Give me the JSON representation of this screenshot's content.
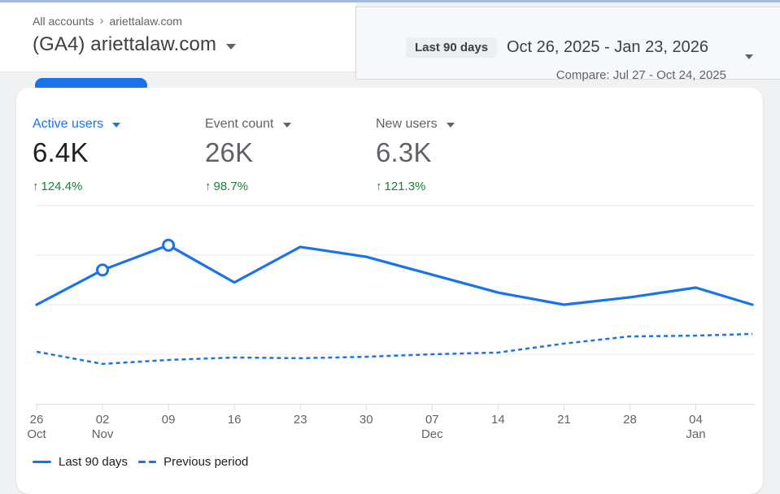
{
  "colors": {
    "accent": "#1a73e8",
    "positive": "#188038",
    "grid": "#e9eaee",
    "axis": "#dadce0",
    "axis_text": "#5f6368"
  },
  "header": {
    "breadcrumb": {
      "root": "All accounts",
      "separator": "›",
      "account": "ariettalaw.com"
    },
    "property_title": "(GA4) ariettalaw.com",
    "date_range": {
      "preset_label": "Last 90 days",
      "range_text": "Oct 26, 2025 - Jan 23, 2026",
      "compare_text": "Compare: Jul 27 - Oct 24, 2025"
    }
  },
  "metrics": [
    {
      "label": "Active users",
      "value": "6.4K",
      "arrow": "↑",
      "delta": "124.4%",
      "selected": true
    },
    {
      "label": "Event count",
      "value": "26K",
      "arrow": "↑",
      "delta": "98.7%",
      "selected": false
    },
    {
      "label": "New users",
      "value": "6.3K",
      "arrow": "↑",
      "delta": "121.3%",
      "selected": false
    }
  ],
  "legend": [
    {
      "label": "Last 90 days",
      "style": "solid"
    },
    {
      "label": "Previous period",
      "style": "dashed"
    }
  ],
  "chart_data": {
    "type": "line",
    "title": "Active users over time (weekly)",
    "xlabel": "",
    "ylabel": "",
    "x_days": [
      0,
      7,
      14,
      21,
      28,
      35,
      42,
      49,
      56,
      63,
      70,
      76
    ],
    "x_ticks": [
      {
        "day": 0,
        "label": "26",
        "sub": "Oct"
      },
      {
        "day": 7,
        "label": "02",
        "sub": "Nov"
      },
      {
        "day": 14,
        "label": "09"
      },
      {
        "day": 21,
        "label": "16"
      },
      {
        "day": 28,
        "label": "23"
      },
      {
        "day": 35,
        "label": "30"
      },
      {
        "day": 42,
        "label": "07",
        "sub": "Dec"
      },
      {
        "day": 49,
        "label": "14"
      },
      {
        "day": 56,
        "label": "21"
      },
      {
        "day": 63,
        "label": "28"
      },
      {
        "day": 70,
        "label": "04",
        "sub": "Jan"
      }
    ],
    "series": [
      {
        "name": "Last 90 days",
        "style": "solid",
        "values": [
          400,
          540,
          640,
          490,
          633,
          593,
          521,
          449,
          400,
          430,
          469,
          400
        ]
      },
      {
        "name": "Previous period",
        "style": "dashed",
        "values": [
          210,
          161,
          177,
          187,
          184,
          190,
          200,
          207,
          243,
          272,
          275,
          282
        ]
      }
    ],
    "markers": [
      1,
      2
    ],
    "ylim": [
      0,
      800
    ],
    "gridline_values": [
      200,
      400,
      600,
      800
    ],
    "y_axis_labels_visible": false,
    "legend_position": "bottom-left"
  }
}
